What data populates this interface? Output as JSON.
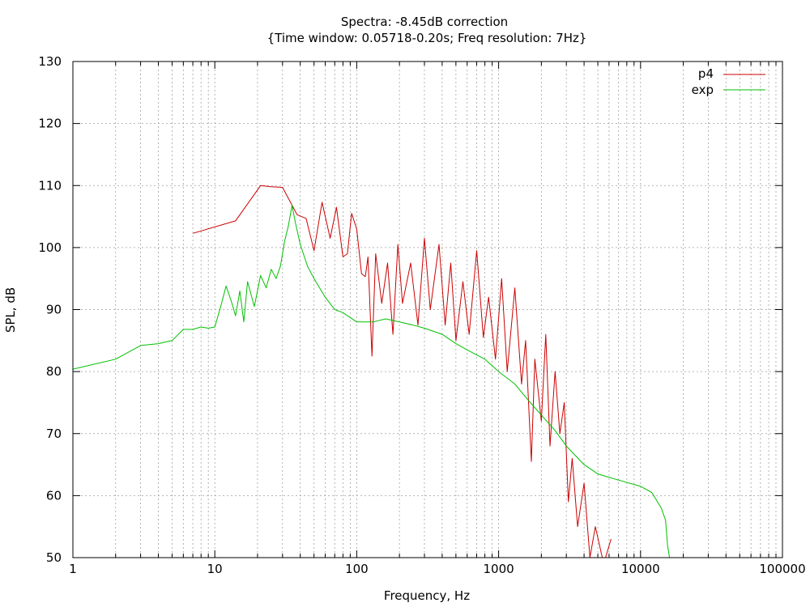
{
  "chart_data": {
    "type": "line",
    "title": "Spectra: -8.45dB correction",
    "subtitle": "{Time window: 0.05718-0.20s; Freq resolution: 7Hz}",
    "xlabel": "Frequency, Hz",
    "ylabel": "SPL, dB",
    "x_scale": "log",
    "xlim": [
      1,
      100000
    ],
    "ylim": [
      50,
      130
    ],
    "x_ticks": [
      1,
      10,
      100,
      1000,
      10000,
      100000
    ],
    "x_tick_labels": [
      "1",
      "10",
      "100",
      "1000",
      "10000",
      "100000"
    ],
    "y_ticks": [
      50,
      60,
      70,
      80,
      90,
      100,
      110,
      120,
      130
    ],
    "y_tick_labels": [
      "50",
      "60",
      "70",
      "80",
      "90",
      "100",
      "110",
      "120",
      "130"
    ],
    "grid": true,
    "legend_position": "top-right",
    "series": [
      {
        "name": "p4",
        "color": "#cc0000",
        "points": [
          [
            7,
            102.3
          ],
          [
            14,
            104.3
          ],
          [
            21,
            110
          ],
          [
            25,
            109.8
          ],
          [
            30,
            109.7
          ],
          [
            38,
            105.3
          ],
          [
            44,
            104.7
          ],
          [
            50,
            99.5
          ],
          [
            57,
            107.3
          ],
          [
            65,
            101.5
          ],
          [
            72,
            106.5
          ],
          [
            80,
            98.5
          ],
          [
            86,
            99
          ],
          [
            92,
            105.5
          ],
          [
            100,
            103
          ],
          [
            108,
            95.8
          ],
          [
            115,
            95.3
          ],
          [
            120,
            98.5
          ],
          [
            128,
            82.5
          ],
          [
            136,
            99
          ],
          [
            150,
            91
          ],
          [
            165,
            97.5
          ],
          [
            180,
            86
          ],
          [
            195,
            100.5
          ],
          [
            210,
            91
          ],
          [
            240,
            97.5
          ],
          [
            270,
            87.5
          ],
          [
            300,
            101.5
          ],
          [
            330,
            90
          ],
          [
            380,
            100.5
          ],
          [
            420,
            87.5
          ],
          [
            460,
            97.5
          ],
          [
            500,
            85
          ],
          [
            560,
            94.5
          ],
          [
            620,
            86
          ],
          [
            700,
            99.5
          ],
          [
            780,
            85.5
          ],
          [
            850,
            92
          ],
          [
            950,
            82
          ],
          [
            1050,
            95
          ],
          [
            1150,
            80
          ],
          [
            1300,
            93.5
          ],
          [
            1450,
            78
          ],
          [
            1550,
            85
          ],
          [
            1700,
            65.5
          ],
          [
            1800,
            82
          ],
          [
            2000,
            72
          ],
          [
            2150,
            86
          ],
          [
            2300,
            68
          ],
          [
            2500,
            80
          ],
          [
            2700,
            70
          ],
          [
            2900,
            75
          ],
          [
            3100,
            59
          ],
          [
            3300,
            66
          ],
          [
            3600,
            55
          ],
          [
            4000,
            62
          ],
          [
            4400,
            50
          ],
          [
            4800,
            55
          ],
          [
            5500,
            49
          ],
          [
            6200,
            53
          ]
        ]
      },
      {
        "name": "exp",
        "color": "#00c000",
        "points": [
          [
            1,
            80.4
          ],
          [
            2,
            82
          ],
          [
            3,
            84.2
          ],
          [
            4,
            84.5
          ],
          [
            5,
            85
          ],
          [
            6,
            86.8
          ],
          [
            7,
            86.8
          ],
          [
            8,
            87.2
          ],
          [
            9,
            87
          ],
          [
            10,
            87.2
          ],
          [
            11,
            90.5
          ],
          [
            12,
            93.8
          ],
          [
            13,
            91.5
          ],
          [
            14,
            89
          ],
          [
            15,
            93
          ],
          [
            16,
            88
          ],
          [
            17,
            94.5
          ],
          [
            19,
            90.5
          ],
          [
            21,
            95.5
          ],
          [
            23,
            93.5
          ],
          [
            25,
            96.5
          ],
          [
            27,
            95
          ],
          [
            29,
            97
          ],
          [
            31,
            101
          ],
          [
            33,
            103.5
          ],
          [
            35,
            106.8
          ],
          [
            37,
            104
          ],
          [
            40,
            100.5
          ],
          [
            45,
            97
          ],
          [
            50,
            95
          ],
          [
            60,
            92
          ],
          [
            70,
            90
          ],
          [
            80,
            89.5
          ],
          [
            100,
            88
          ],
          [
            130,
            88
          ],
          [
            160,
            88.5
          ],
          [
            200,
            88
          ],
          [
            250,
            87.5
          ],
          [
            300,
            87
          ],
          [
            400,
            86
          ],
          [
            500,
            84.5
          ],
          [
            600,
            83.5
          ],
          [
            800,
            82
          ],
          [
            1000,
            80
          ],
          [
            1300,
            78
          ],
          [
            1600,
            75.5
          ],
          [
            2000,
            73
          ],
          [
            2500,
            70.5
          ],
          [
            3000,
            68
          ],
          [
            4000,
            65
          ],
          [
            5000,
            63.5
          ],
          [
            7000,
            62.5
          ],
          [
            10000,
            61.5
          ],
          [
            12000,
            60.5
          ],
          [
            14000,
            58
          ],
          [
            15000,
            56
          ],
          [
            15500,
            52
          ],
          [
            16000,
            50
          ]
        ]
      }
    ]
  }
}
